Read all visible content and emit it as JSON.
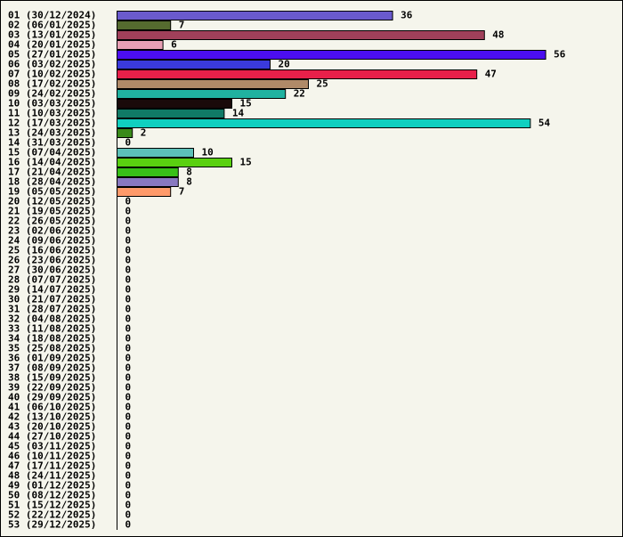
{
  "chart_data": {
    "type": "bar",
    "orientation": "horizontal",
    "title": "",
    "xlabel": "",
    "ylabel": "",
    "categories": [
      "01 (30/12/2024)",
      "02 (06/01/2025)",
      "03 (13/01/2025)",
      "04 (20/01/2025)",
      "05 (27/01/2025)",
      "06 (03/02/2025)",
      "07 (10/02/2025)",
      "08 (17/02/2025)",
      "09 (24/02/2025)",
      "10 (03/03/2025)",
      "11 (10/03/2025)",
      "12 (17/03/2025)",
      "13 (24/03/2025)",
      "14 (31/03/2025)",
      "15 (07/04/2025)",
      "16 (14/04/2025)",
      "17 (21/04/2025)",
      "18 (28/04/2025)",
      "19 (05/05/2025)",
      "20 (12/05/2025)",
      "21 (19/05/2025)",
      "22 (26/05/2025)",
      "23 (02/06/2025)",
      "24 (09/06/2025)",
      "25 (16/06/2025)",
      "26 (23/06/2025)",
      "27 (30/06/2025)",
      "28 (07/07/2025)",
      "29 (14/07/2025)",
      "30 (21/07/2025)",
      "31 (28/07/2025)",
      "32 (04/08/2025)",
      "33 (11/08/2025)",
      "34 (18/08/2025)",
      "35 (25/08/2025)",
      "36 (01/09/2025)",
      "37 (08/09/2025)",
      "38 (15/09/2025)",
      "39 (22/09/2025)",
      "40 (29/09/2025)",
      "41 (06/10/2025)",
      "42 (13/10/2025)",
      "43 (20/10/2025)",
      "44 (27/10/2025)",
      "45 (03/11/2025)",
      "46 (10/11/2025)",
      "47 (17/11/2025)",
      "48 (24/11/2025)",
      "49 (01/12/2025)",
      "50 (08/12/2025)",
      "51 (15/12/2025)",
      "52 (22/12/2025)",
      "53 (29/12/2025)"
    ],
    "values": [
      36,
      7,
      48,
      6,
      56,
      20,
      47,
      25,
      22,
      15,
      14,
      54,
      2,
      0,
      10,
      15,
      8,
      8,
      7,
      0,
      0,
      0,
      0,
      0,
      0,
      0,
      0,
      0,
      0,
      0,
      0,
      0,
      0,
      0,
      0,
      0,
      0,
      0,
      0,
      0,
      0,
      0,
      0,
      0,
      0,
      0,
      0,
      0,
      0,
      0,
      0,
      0,
      0
    ],
    "colors": [
      "#6a5acd",
      "#556b2f",
      "#a0405a",
      "#e8a0b4",
      "#4b0ef0",
      "#3a3adc",
      "#e8204a",
      "#b08a68",
      "#20b2a0",
      "#1a0a0a",
      "#107a66",
      "#10d0c0",
      "#3a8a1a",
      "#ffffff",
      "#5cc0b8",
      "#5ad010",
      "#38c018",
      "#8878c0",
      "#ff9a6a",
      "#ffffff",
      "#ffffff",
      "#ffffff",
      "#ffffff",
      "#ffffff",
      "#ffffff",
      "#ffffff",
      "#ffffff",
      "#ffffff",
      "#ffffff",
      "#ffffff",
      "#ffffff",
      "#ffffff",
      "#ffffff",
      "#ffffff",
      "#ffffff",
      "#ffffff",
      "#ffffff",
      "#ffffff",
      "#ffffff",
      "#ffffff",
      "#ffffff",
      "#ffffff",
      "#ffffff",
      "#ffffff",
      "#ffffff",
      "#ffffff",
      "#ffffff",
      "#ffffff",
      "#ffffff",
      "#ffffff",
      "#ffffff",
      "#ffffff",
      "#ffffff"
    ],
    "xlim": [
      0,
      56
    ],
    "grid": false,
    "legend": "none",
    "value_labels": true
  }
}
